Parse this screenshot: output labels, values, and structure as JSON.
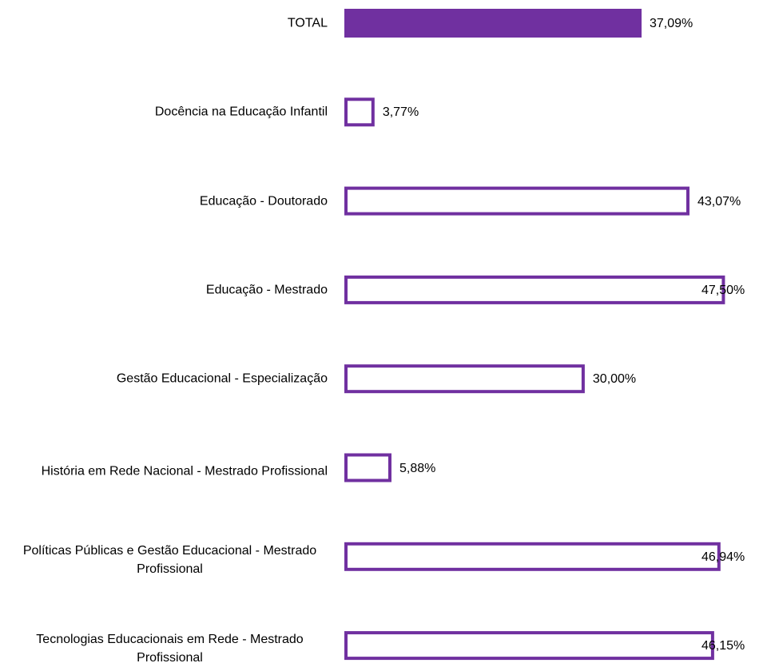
{
  "chart_data": {
    "type": "bar",
    "orientation": "horizontal",
    "categories": [
      "TOTAL",
      "Docência na Educação Infantil",
      "Educação - Doutorado",
      "Educação - Mestrado",
      "Gestão Educacional - Especialização",
      "História em Rede Nacional - Mestrado Profissional",
      "Políticas Públicas e Gestão Educacional - Mestrado Profissional",
      "Tecnologias Educacionais em Rede - Mestrado Profissional"
    ],
    "values": [
      37.09,
      3.77,
      43.07,
      47.5,
      30.0,
      5.88,
      46.94,
      46.15
    ],
    "value_labels": [
      "37,09%",
      "3,77%",
      "43,07%",
      "47,50%",
      "30,00%",
      "5,88%",
      "46,94%",
      "46,15%"
    ],
    "color": "#7030a0",
    "fill_colors": [
      "#7030a0",
      "#ffffff",
      "#ffffff",
      "#ffffff",
      "#ffffff",
      "#ffffff",
      "#ffffff",
      "#ffffff"
    ],
    "xlim": [
      0,
      50
    ]
  }
}
